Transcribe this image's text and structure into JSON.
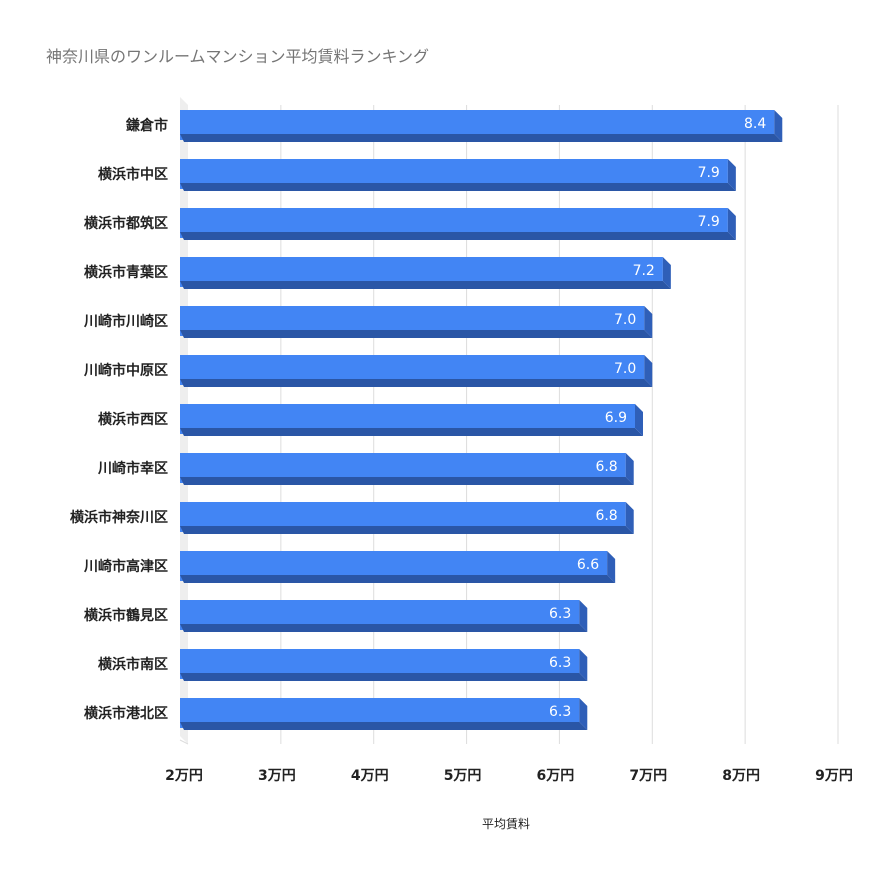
{
  "chart_data": {
    "type": "bar",
    "orientation": "horizontal",
    "title": "神奈川県のワンルームマンション平均賃料ランキング",
    "xlabel": "平均賃料",
    "ylabel": "",
    "categories": [
      "鎌倉市",
      "横浜市中区",
      "横浜市都筑区",
      "横浜市青葉区",
      "川崎市川崎区",
      "川崎市中原区",
      "横浜市西区",
      "川崎市幸区",
      "横浜市神奈川区",
      "川崎市高津区",
      "横浜市鶴見区",
      "横浜市南区",
      "横浜市港北区"
    ],
    "values": [
      8.4,
      7.9,
      7.9,
      7.2,
      7.0,
      7.0,
      6.9,
      6.8,
      6.8,
      6.6,
      6.3,
      6.3,
      6.3
    ],
    "value_labels": [
      "8.4",
      "7.9",
      "7.9",
      "7.2",
      "7.0",
      "7.0",
      "6.9",
      "6.8",
      "6.8",
      "6.6",
      "6.3",
      "6.3",
      "6.3"
    ],
    "xlim": [
      2,
      9
    ],
    "ticks": [
      2,
      3,
      4,
      5,
      6,
      7,
      8,
      9
    ],
    "tick_labels": [
      "2万円",
      "3万円",
      "4万円",
      "5万円",
      "6万円",
      "7万円",
      "8万円",
      "9万円"
    ],
    "grid": true,
    "legend": "none",
    "style": "3d"
  },
  "colors": {
    "bar_front": "#4285f4",
    "bar_bottom": "#2a56a6",
    "bar_side": "#2f5fb8",
    "grid": "#dddddd",
    "wall": "#eeeeee",
    "title": "#757575",
    "text": "#222222",
    "value_text": "#ffffff"
  }
}
